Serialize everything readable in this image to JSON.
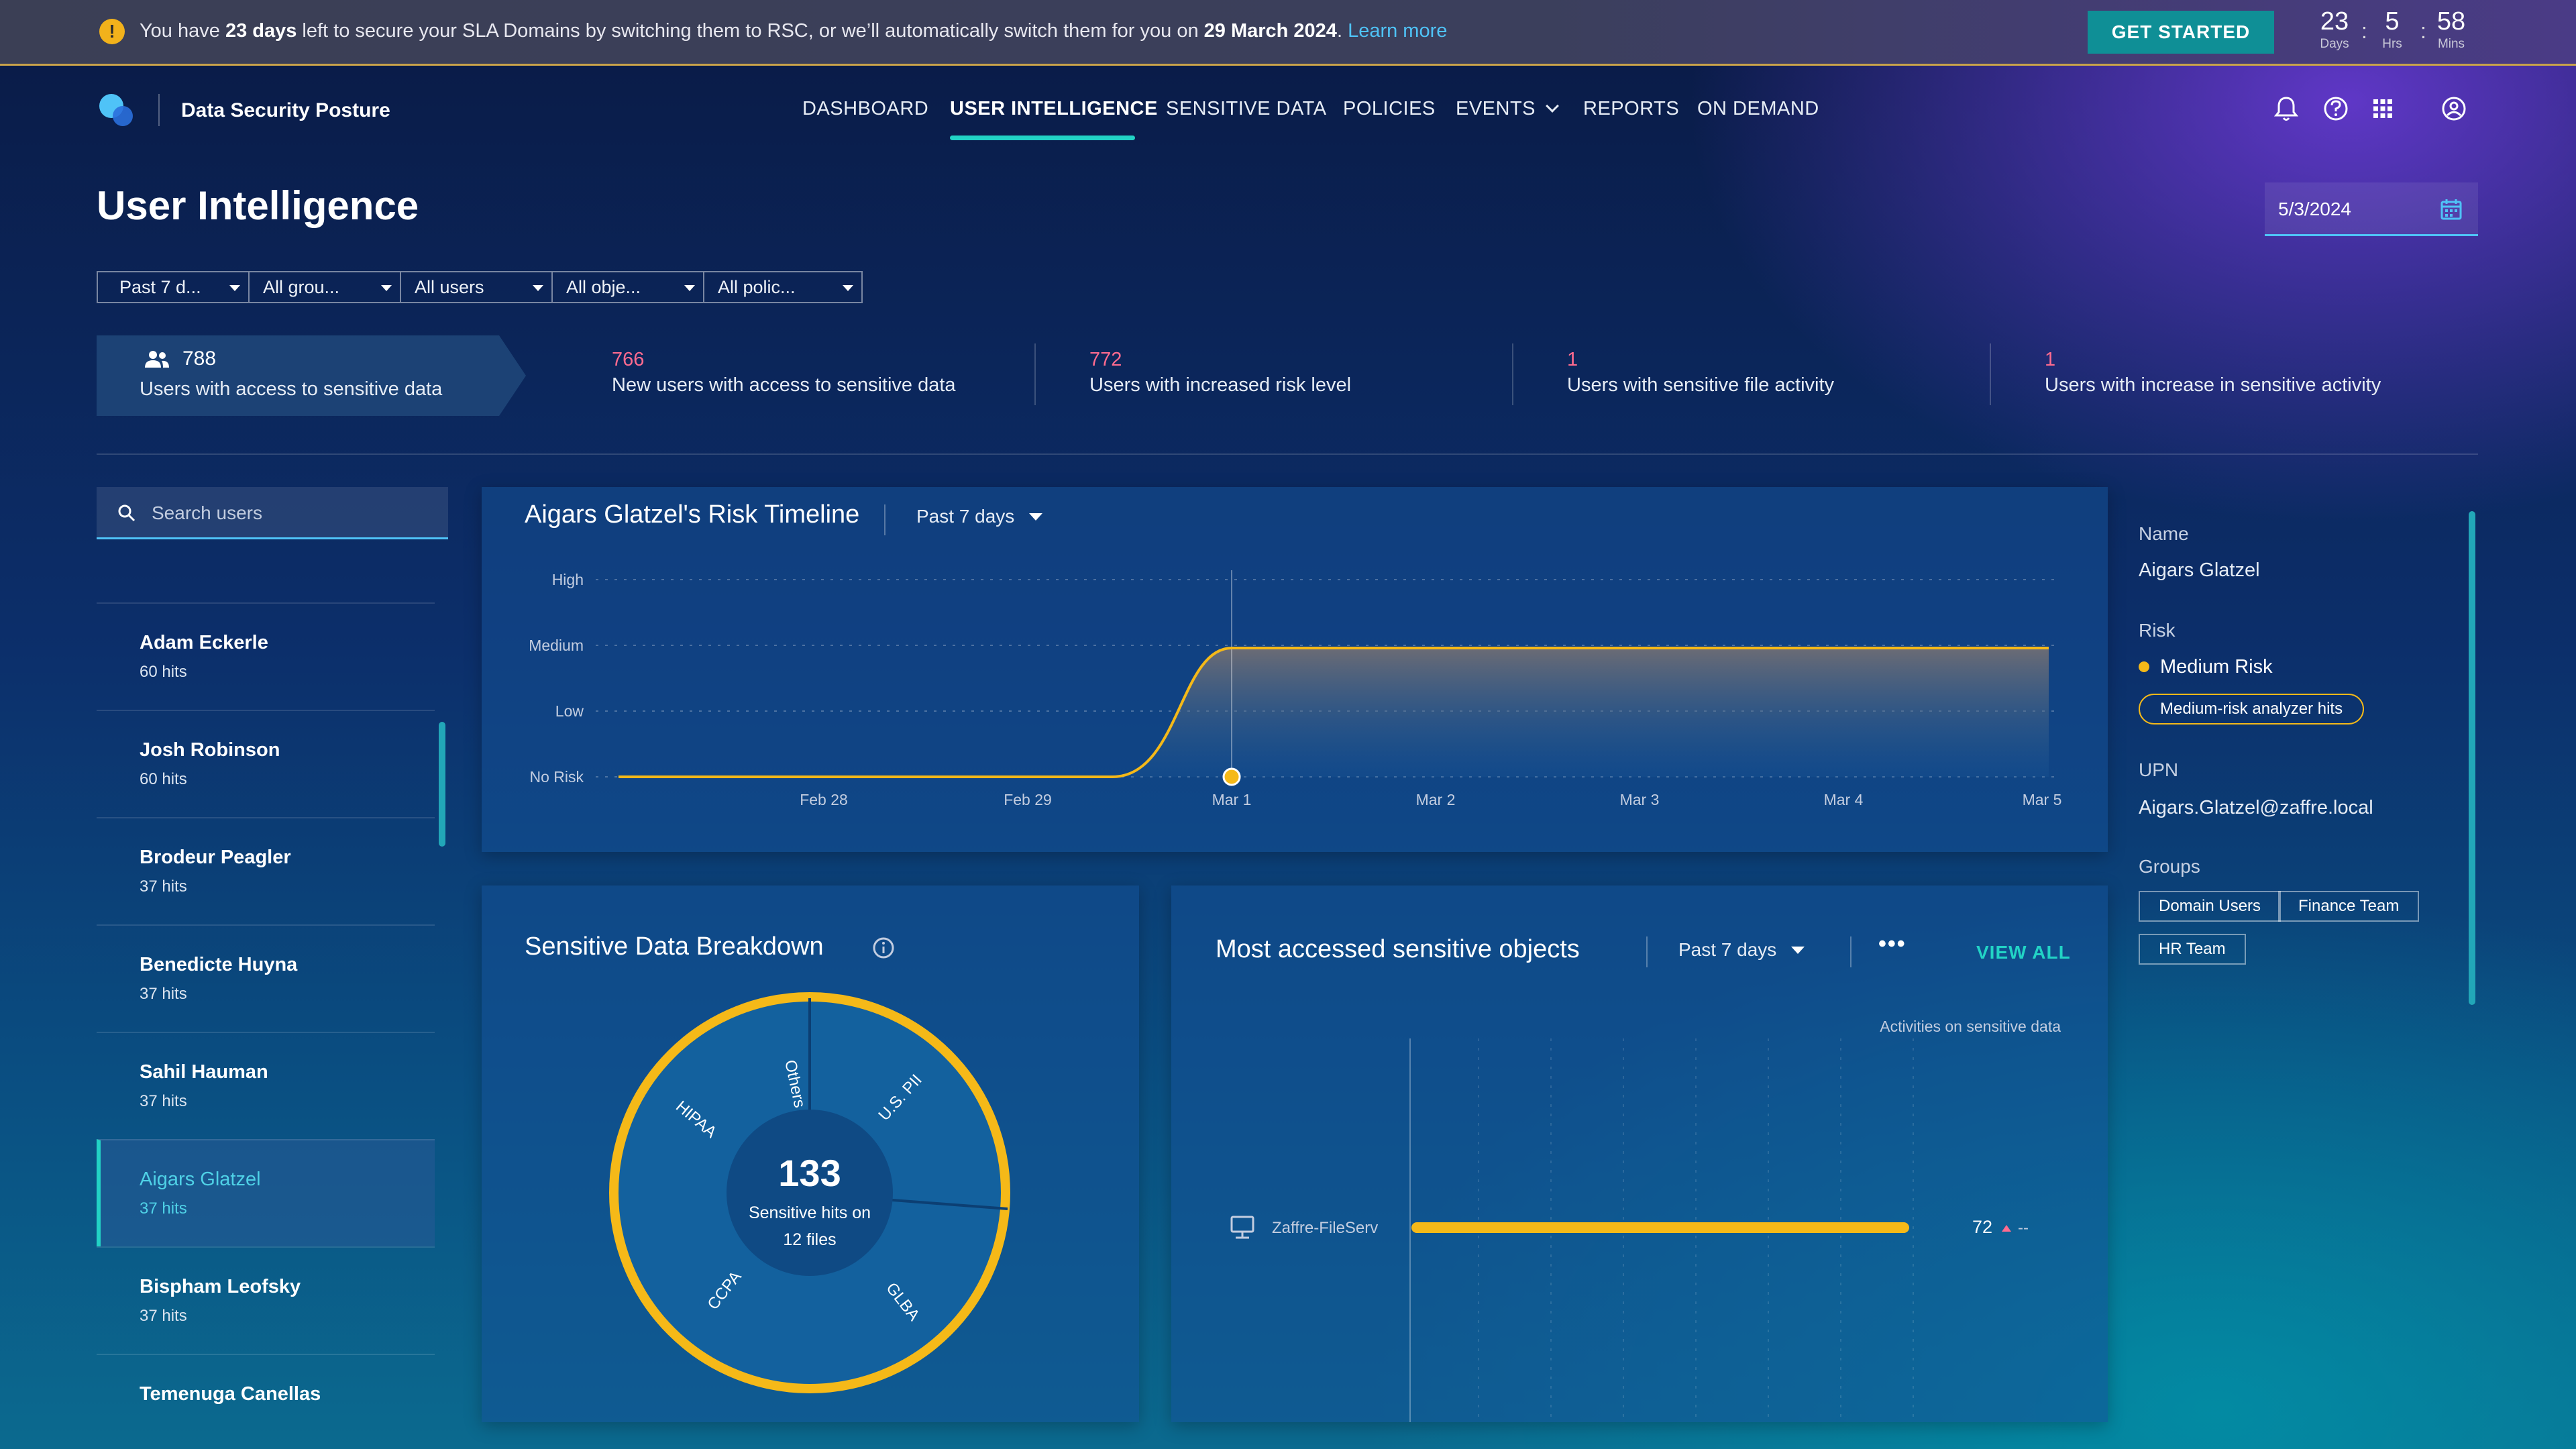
{
  "banner": {
    "msg_prefix": "You have ",
    "days_bold": "23 days",
    "msg_middle": " left to secure your SLA Domains by switching them to RSC, or we’ll automatically switch them for you on ",
    "date_bold": "29 March 2024",
    "msg_suffix": ". ",
    "link": "Learn more",
    "cta": "GET STARTED",
    "countdown": [
      {
        "num": "23",
        "label": "Days"
      },
      {
        "num": "5",
        "label": "Hrs"
      },
      {
        "num": "58",
        "label": "Mins"
      }
    ],
    "separator": ":"
  },
  "header": {
    "product": "Data Security Posture",
    "nav": [
      "DASHBOARD",
      "USER INTELLIGENCE",
      "SENSITIVE DATA",
      "POLICIES",
      "EVENTS",
      "REPORTS",
      "ON DEMAND"
    ],
    "active_nav": "USER INTELLIGENCE",
    "icons": [
      "bell-icon",
      "help-icon",
      "apps-grid-icon",
      "account-icon"
    ]
  },
  "page": {
    "title": "User Intelligence",
    "date": "5/3/2024"
  },
  "filters": [
    "Past 7 d...",
    "All grou...",
    "All users",
    "All obje...",
    "All polic..."
  ],
  "summary": [
    {
      "value": "788",
      "label": "Users with access to sensitive data"
    },
    {
      "value": "766",
      "label": "New users with access to sensitive data"
    },
    {
      "value": "772",
      "label": "Users with increased risk level"
    },
    {
      "value": "1",
      "label": "Users with sensitive file activity"
    },
    {
      "value": "1",
      "label": "Users with increase in sensitive activity"
    }
  ],
  "users": {
    "search_placeholder": "Search users",
    "list": [
      {
        "name": "Adam Eckerle",
        "hits": "60 hits"
      },
      {
        "name": "Josh Robinson",
        "hits": "60 hits"
      },
      {
        "name": "Brodeur Peagler",
        "hits": "37 hits"
      },
      {
        "name": "Benedicte Huyna",
        "hits": "37 hits"
      },
      {
        "name": "Sahil Hauman",
        "hits": "37 hits"
      },
      {
        "name": "Aigars Glatzel",
        "hits": "37 hits"
      },
      {
        "name": "Bispham Leofsky",
        "hits": "37 hits"
      },
      {
        "name": "Temenuga Canellas",
        "hits": ""
      }
    ],
    "selected_index": 5
  },
  "timeline": {
    "title": "Aigars Glatzel's Risk Timeline",
    "range": "Past 7 days",
    "y_levels": [
      "High",
      "Medium",
      "Low",
      "No Risk"
    ],
    "x_labels": [
      "Feb 28",
      "Feb 29",
      "Mar 1",
      "Mar 2",
      "Mar 3",
      "Mar 4",
      "Mar 5"
    ],
    "colors": {
      "line": "#f5b918"
    }
  },
  "breakdown": {
    "title": "Sensitive Data Breakdown",
    "center_value": "133",
    "center_line1": "Sensitive hits on",
    "center_line2": "12 files",
    "segments": [
      "Others",
      "U.S. PII",
      "GLBA",
      "CCPA",
      "HIPAA"
    ]
  },
  "objects": {
    "title": "Most accessed sensitive objects",
    "range": "Past 7 days",
    "view_all": "VIEW ALL",
    "axis_title": "Activities on sensitive data",
    "rows": [
      {
        "name": "Zaffre-FileServ",
        "value": "72",
        "trend": "--"
      }
    ]
  },
  "detail": {
    "name_label": "Name",
    "name": "Aigars Glatzel",
    "risk_label": "Risk",
    "risk": "Medium Risk",
    "risk_pill": "Medium-risk analyzer hits",
    "upn_label": "UPN",
    "upn": "Aigars.Glatzel@zaffre.local",
    "groups_label": "Groups",
    "groups": [
      "Domain Users",
      "Finance Team",
      "HR Team"
    ]
  }
}
